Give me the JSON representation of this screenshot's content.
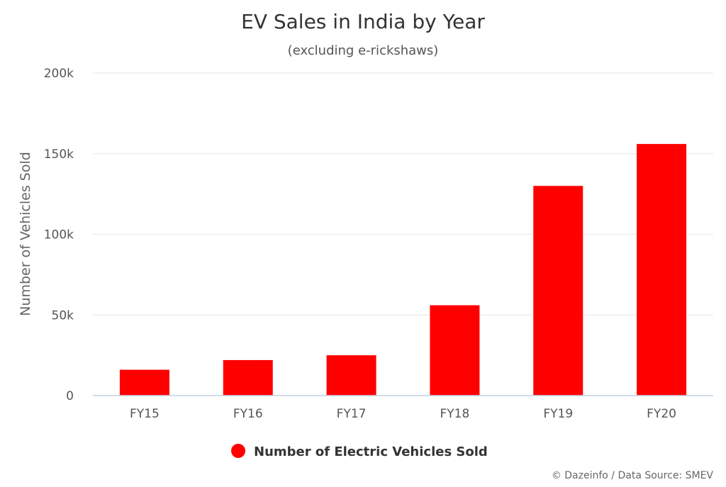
{
  "chart_data": {
    "type": "bar",
    "title": "EV Sales in India by Year",
    "subtitle": "(excluding e-rickshaws)",
    "xlabel": "",
    "ylabel": "Number of Vehicles Sold",
    "categories": [
      "FY15",
      "FY16",
      "FY17",
      "FY18",
      "FY19",
      "FY20"
    ],
    "series": [
      {
        "name": "Number of Electric Vehicles Sold",
        "values": [
          16000,
          22000,
          25000,
          56000,
          130000,
          156000
        ]
      }
    ],
    "ylim": [
      0,
      200000
    ],
    "yticks": [
      {
        "value": 0,
        "label": "0"
      },
      {
        "value": 50000,
        "label": "50k"
      },
      {
        "value": 100000,
        "label": "100k"
      },
      {
        "value": 150000,
        "label": "150k"
      },
      {
        "value": 200000,
        "label": "200k"
      }
    ],
    "grid": true,
    "legend_position": "bottom-center",
    "bar_color": "#ff0000",
    "credit": "© Dazeinfo / Data Source: SMEV"
  }
}
